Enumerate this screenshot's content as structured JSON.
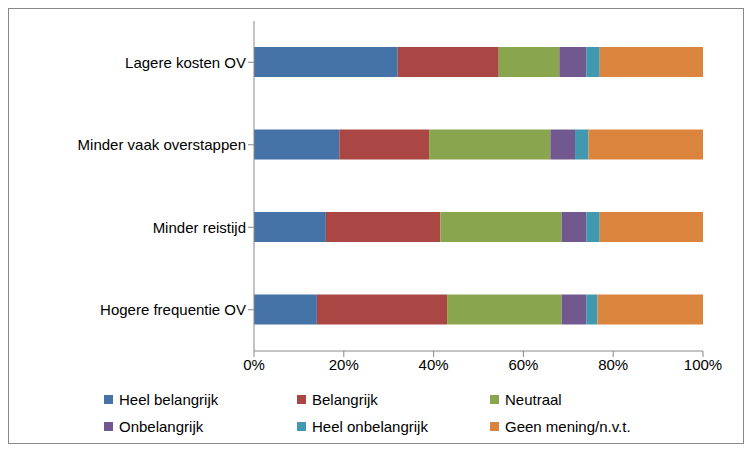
{
  "chart_data": {
    "type": "bar",
    "orientation": "horizontal",
    "stacked": true,
    "grid": false,
    "legend": "bottom",
    "categories": [
      "Lagere kosten OV",
      "Minder vaak overstappen",
      "Minder reistijd",
      "Hogere frequentie OV"
    ],
    "series": [
      {
        "name": "Heel belangrijk",
        "color": "#4572A7",
        "values": [
          32,
          19,
          16,
          14
        ]
      },
      {
        "name": "Belangrijk",
        "color": "#AA4643",
        "values": [
          22.5,
          20,
          25.5,
          29
        ]
      },
      {
        "name": "Neutraal",
        "color": "#89A54E",
        "values": [
          13.5,
          27,
          27,
          25.5
        ]
      },
      {
        "name": "Onbelangrijk",
        "color": "#71588F",
        "values": [
          6,
          5.5,
          5.5,
          5.5
        ]
      },
      {
        "name": "Heel onbelangrijk",
        "color": "#4198AF",
        "values": [
          3,
          3,
          3,
          2.5
        ]
      },
      {
        "name": "Geen mening/n.v.t.",
        "color": "#DB843D",
        "values": [
          23,
          25.5,
          23,
          23.5
        ]
      }
    ],
    "xlim": [
      0,
      100
    ],
    "xticks": [
      {
        "value": 0,
        "label": "0%"
      },
      {
        "value": 20,
        "label": "20%"
      },
      {
        "value": 40,
        "label": "40%"
      },
      {
        "value": 60,
        "label": "60%"
      },
      {
        "value": 80,
        "label": "80%"
      },
      {
        "value": 100,
        "label": "100%"
      }
    ]
  }
}
